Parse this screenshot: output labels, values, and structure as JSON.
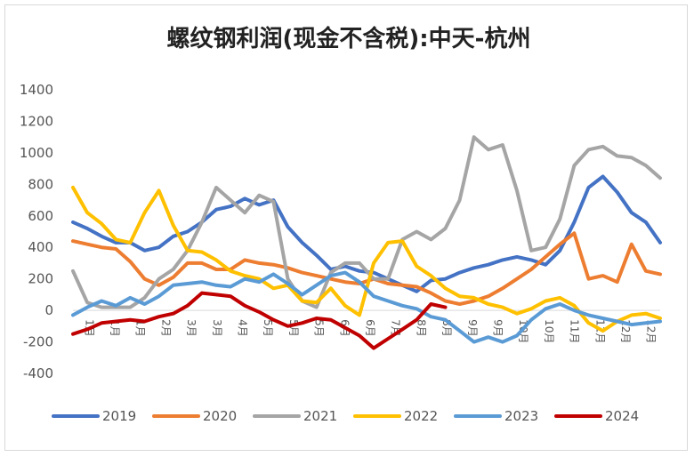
{
  "chart_data": {
    "type": "line",
    "title": "螺纹钢利润(现金不含税):中天-杭州",
    "ylim": [
      -400,
      1400
    ],
    "yticks": [
      "1400",
      "1200",
      "1000",
      "800",
      "600",
      "400",
      "200",
      "0",
      "-200",
      "-400"
    ],
    "x_labels": [
      "1月",
      "1月",
      "1月",
      "2月",
      "3月",
      "3月",
      "4月",
      "5月",
      "5月",
      "5月",
      "6月",
      "6月",
      "7月",
      "8月",
      "8月",
      "9月",
      "9月",
      "10月",
      "10月",
      "11月",
      "11月",
      "12月",
      "12月"
    ],
    "legend_position": "bottom",
    "grid": false,
    "series": [
      {
        "name": "2019",
        "color": "#4472C4",
        "values": [
          560,
          520,
          470,
          430,
          430,
          380,
          400,
          470,
          500,
          560,
          640,
          660,
          710,
          670,
          700,
          530,
          430,
          350,
          260,
          280,
          250,
          240,
          200,
          160,
          120,
          190,
          200,
          240,
          270,
          290,
          320,
          340,
          320,
          290,
          380,
          560,
          780,
          850,
          750,
          620,
          560,
          430
        ]
      },
      {
        "name": "2020",
        "color": "#ED7D31",
        "values": [
          440,
          420,
          400,
          390,
          310,
          200,
          160,
          210,
          300,
          300,
          260,
          260,
          320,
          300,
          290,
          270,
          240,
          220,
          200,
          180,
          170,
          200,
          170,
          160,
          150,
          110,
          60,
          40,
          60,
          90,
          140,
          200,
          260,
          340,
          420,
          490,
          200,
          220,
          180,
          420,
          250,
          230
        ]
      },
      {
        "name": "2021",
        "color": "#A5A5A5",
        "values": [
          250,
          50,
          20,
          20,
          20,
          80,
          200,
          260,
          380,
          560,
          780,
          700,
          620,
          730,
          690,
          200,
          60,
          20,
          240,
          300,
          300,
          200,
          200,
          450,
          500,
          450,
          520,
          700,
          1100,
          1020,
          1050,
          760,
          380,
          400,
          580,
          920,
          1020,
          1040,
          980,
          970,
          920,
          840
        ]
      },
      {
        "name": "2022",
        "color": "#FFC000",
        "values": [
          780,
          620,
          550,
          450,
          430,
          620,
          760,
          540,
          380,
          370,
          320,
          250,
          220,
          200,
          140,
          160,
          60,
          50,
          140,
          30,
          -30,
          300,
          430,
          440,
          280,
          220,
          140,
          90,
          80,
          40,
          20,
          -20,
          10,
          60,
          80,
          30,
          -80,
          -130,
          -70,
          -30,
          -20,
          -50
        ]
      },
      {
        "name": "2023",
        "color": "#5B9BD5",
        "values": [
          -30,
          20,
          60,
          30,
          80,
          40,
          90,
          160,
          170,
          180,
          160,
          150,
          200,
          180,
          230,
          170,
          100,
          160,
          220,
          240,
          180,
          90,
          60,
          30,
          10,
          -40,
          -60,
          -130,
          -200,
          -170,
          -200,
          -160,
          -60,
          10,
          40,
          0,
          -30,
          -50,
          -70,
          -90,
          -80,
          -70
        ]
      },
      {
        "name": "2024",
        "color": "#C00000",
        "values": [
          -150,
          -120,
          -80,
          -70,
          -60,
          -70,
          -40,
          -20,
          30,
          110,
          100,
          90,
          30,
          -10,
          -60,
          -100,
          -80,
          -50,
          -60,
          -110,
          -160,
          -240,
          -180,
          -120,
          -60,
          40,
          20
        ]
      }
    ]
  }
}
